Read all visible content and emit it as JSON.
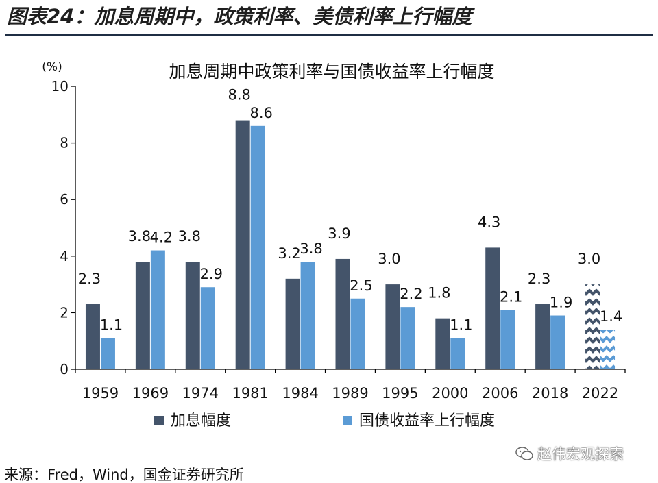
{
  "figure": {
    "title": "图表24：加息周期中，政策利率、美债利率上行幅度",
    "source": "来源：Fred，Wind，国金证券研究所",
    "watermark": "赵伟宏观探索"
  },
  "colors": {
    "series_dark": "#44546A",
    "series_light": "#5B9BD5",
    "axis": "#000000",
    "rule": "#1F2E44"
  },
  "chart_data": {
    "type": "bar",
    "title": "加息周期中政策利率与国债收益率上行幅度",
    "unit_label": "(%)",
    "categories": [
      "1959",
      "1969",
      "1974",
      "1981",
      "1984",
      "1989",
      "1995",
      "2000",
      "2006",
      "2018",
      "2022"
    ],
    "series": [
      {
        "name": "加息幅度",
        "values": [
          2.3,
          3.8,
          3.8,
          8.8,
          3.2,
          3.9,
          3.0,
          1.8,
          4.3,
          2.3,
          3.0
        ]
      },
      {
        "name": "国债收益率上行幅度",
        "values": [
          1.1,
          4.2,
          2.9,
          8.6,
          3.8,
          2.5,
          2.2,
          1.1,
          2.1,
          1.9,
          1.4
        ]
      }
    ],
    "data_labels": [
      [
        "2.3",
        "3.8",
        "3.8",
        "8.8",
        "3.2",
        "3.9",
        "3.0",
        "1.8",
        "4.3",
        "2.3",
        "3.0"
      ],
      [
        "1.1",
        "4.2",
        "2.9",
        "8.6",
        "3.8",
        "2.5",
        "2.2",
        "1.1",
        "2.1",
        "1.9",
        "1.4"
      ]
    ],
    "patterned_categories": [
      "2022"
    ],
    "yticks": [
      "0",
      "2",
      "4",
      "6",
      "8",
      "10"
    ],
    "ylim": [
      0,
      10
    ],
    "grid": false,
    "legend_position": "bottom"
  }
}
